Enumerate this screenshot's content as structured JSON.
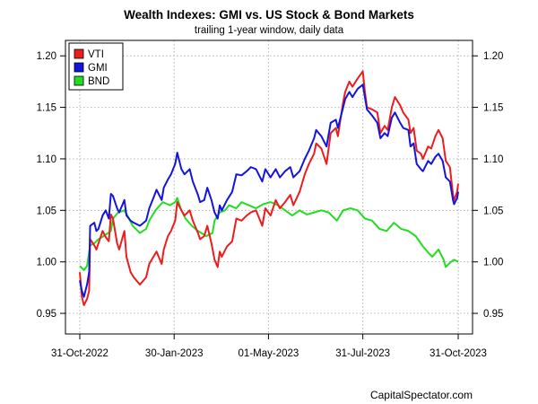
{
  "chart_data": {
    "type": "line",
    "title": "Wealth Indexes: GMI vs. US Stock & Bond Markets",
    "subtitle": "trailing 1-year window, daily data",
    "credit": "CapitalSpectator.com",
    "x_range": [
      "2022-10-31",
      "2023-10-31"
    ],
    "x_ticks": [
      "31-Oct-2022",
      "30-Jan-2023",
      "01-May-2023",
      "31-Jul-2023",
      "31-Oct-2023"
    ],
    "ylim": [
      0.93,
      1.215
    ],
    "y_ticks": [
      "0.95",
      "1.00",
      "1.05",
      "1.10",
      "1.15",
      "1.20"
    ],
    "grid": true,
    "legend_position": "top-left",
    "series": [
      {
        "name": "VTI",
        "color": "#ee1c1c",
        "points": [
          [
            "2022-10-31",
            0.99
          ],
          [
            "2022-11-02",
            0.966
          ],
          [
            "2022-11-04",
            0.958
          ],
          [
            "2022-11-07",
            0.964
          ],
          [
            "2022-11-09",
            0.972
          ],
          [
            "2022-11-10",
            1.022
          ],
          [
            "2022-11-14",
            1.016
          ],
          [
            "2022-11-16",
            1.012
          ],
          [
            "2022-11-18",
            1.018
          ],
          [
            "2022-11-22",
            1.03
          ],
          [
            "2022-11-25",
            1.024
          ],
          [
            "2022-11-28",
            1.02
          ],
          [
            "2022-11-30",
            1.046
          ],
          [
            "2022-12-02",
            1.042
          ],
          [
            "2022-12-06",
            1.018
          ],
          [
            "2022-12-08",
            1.012
          ],
          [
            "2022-12-13",
            1.03
          ],
          [
            "2022-12-15",
            1.005
          ],
          [
            "2022-12-19",
            0.99
          ],
          [
            "2022-12-22",
            0.985
          ],
          [
            "2022-12-28",
            0.978
          ],
          [
            "2023-01-03",
            0.985
          ],
          [
            "2023-01-06",
            0.998
          ],
          [
            "2023-01-10",
            1.005
          ],
          [
            "2023-01-13",
            1.01
          ],
          [
            "2023-01-18",
            0.998
          ],
          [
            "2023-01-20",
            1.012
          ],
          [
            "2023-01-24",
            1.025
          ],
          [
            "2023-01-27",
            1.03
          ],
          [
            "2023-01-31",
            1.04
          ],
          [
            "2023-02-02",
            1.058
          ],
          [
            "2023-02-06",
            1.05
          ],
          [
            "2023-02-09",
            1.045
          ],
          [
            "2023-02-14",
            1.05
          ],
          [
            "2023-02-17",
            1.04
          ],
          [
            "2023-02-22",
            1.028
          ],
          [
            "2023-02-24",
            1.022
          ],
          [
            "2023-02-28",
            1.025
          ],
          [
            "2023-03-03",
            1.035
          ],
          [
            "2023-03-07",
            1.018
          ],
          [
            "2023-03-10",
            1.002
          ],
          [
            "2023-03-13",
            0.995
          ],
          [
            "2023-03-15",
            1.01
          ],
          [
            "2023-03-17",
            1.005
          ],
          [
            "2023-03-22",
            1.015
          ],
          [
            "2023-03-27",
            1.02
          ],
          [
            "2023-03-31",
            1.042
          ],
          [
            "2023-04-05",
            1.04
          ],
          [
            "2023-04-10",
            1.045
          ],
          [
            "2023-04-14",
            1.048
          ],
          [
            "2023-04-19",
            1.05
          ],
          [
            "2023-04-25",
            1.035
          ],
          [
            "2023-04-28",
            1.052
          ],
          [
            "2023-05-03",
            1.045
          ],
          [
            "2023-05-08",
            1.06
          ],
          [
            "2023-05-12",
            1.052
          ],
          [
            "2023-05-17",
            1.058
          ],
          [
            "2023-05-22",
            1.065
          ],
          [
            "2023-05-25",
            1.055
          ],
          [
            "2023-05-31",
            1.068
          ],
          [
            "2023-06-05",
            1.085
          ],
          [
            "2023-06-09",
            1.095
          ],
          [
            "2023-06-14",
            1.105
          ],
          [
            "2023-06-16",
            1.115
          ],
          [
            "2023-06-21",
            1.11
          ],
          [
            "2023-06-26",
            1.095
          ],
          [
            "2023-06-30",
            1.125
          ],
          [
            "2023-07-05",
            1.13
          ],
          [
            "2023-07-07",
            1.122
          ],
          [
            "2023-07-12",
            1.155
          ],
          [
            "2023-07-14",
            1.165
          ],
          [
            "2023-07-18",
            1.175
          ],
          [
            "2023-07-21",
            1.17
          ],
          [
            "2023-07-26",
            1.178
          ],
          [
            "2023-07-31",
            1.185
          ],
          [
            "2023-08-02",
            1.165
          ],
          [
            "2023-08-04",
            1.15
          ],
          [
            "2023-08-09",
            1.148
          ],
          [
            "2023-08-14",
            1.145
          ],
          [
            "2023-08-17",
            1.125
          ],
          [
            "2023-08-21",
            1.132
          ],
          [
            "2023-08-24",
            1.128
          ],
          [
            "2023-08-28",
            1.15
          ],
          [
            "2023-08-31",
            1.16
          ],
          [
            "2023-09-05",
            1.152
          ],
          [
            "2023-09-08",
            1.145
          ],
          [
            "2023-09-13",
            1.138
          ],
          [
            "2023-09-15",
            1.125
          ],
          [
            "2023-09-18",
            1.13
          ],
          [
            "2023-09-21",
            1.108
          ],
          [
            "2023-09-25",
            1.105
          ],
          [
            "2023-09-27",
            1.1
          ],
          [
            "2023-10-02",
            1.112
          ],
          [
            "2023-10-05",
            1.11
          ],
          [
            "2023-10-09",
            1.122
          ],
          [
            "2023-10-12",
            1.128
          ],
          [
            "2023-10-16",
            1.12
          ],
          [
            "2023-10-19",
            1.098
          ],
          [
            "2023-10-23",
            1.092
          ],
          [
            "2023-10-26",
            1.065
          ],
          [
            "2023-10-27",
            1.06
          ],
          [
            "2023-10-30",
            1.068
          ],
          [
            "2023-10-31",
            1.076
          ]
        ]
      },
      {
        "name": "GMI",
        "color": "#1414dc",
        "points": [
          [
            "2022-10-31",
            0.982
          ],
          [
            "2022-11-02",
            0.972
          ],
          [
            "2022-11-04",
            0.966
          ],
          [
            "2022-11-07",
            0.978
          ],
          [
            "2022-11-09",
            0.99
          ],
          [
            "2022-11-10",
            1.035
          ],
          [
            "2022-11-14",
            1.038
          ],
          [
            "2022-11-16",
            1.03
          ],
          [
            "2022-11-18",
            1.032
          ],
          [
            "2022-11-22",
            1.045
          ],
          [
            "2022-11-25",
            1.05
          ],
          [
            "2022-11-28",
            1.042
          ],
          [
            "2022-11-30",
            1.066
          ],
          [
            "2022-12-02",
            1.064
          ],
          [
            "2022-12-06",
            1.052
          ],
          [
            "2022-12-08",
            1.048
          ],
          [
            "2022-12-13",
            1.06
          ],
          [
            "2022-12-15",
            1.045
          ],
          [
            "2022-12-19",
            1.04
          ],
          [
            "2022-12-22",
            1.038
          ],
          [
            "2022-12-28",
            1.035
          ],
          [
            "2023-01-03",
            1.04
          ],
          [
            "2023-01-06",
            1.052
          ],
          [
            "2023-01-10",
            1.062
          ],
          [
            "2023-01-13",
            1.07
          ],
          [
            "2023-01-18",
            1.06
          ],
          [
            "2023-01-20",
            1.072
          ],
          [
            "2023-01-24",
            1.08
          ],
          [
            "2023-01-27",
            1.085
          ],
          [
            "2023-01-31",
            1.095
          ],
          [
            "2023-02-02",
            1.106
          ],
          [
            "2023-02-06",
            1.09
          ],
          [
            "2023-02-09",
            1.085
          ],
          [
            "2023-02-14",
            1.09
          ],
          [
            "2023-02-17",
            1.078
          ],
          [
            "2023-02-22",
            1.065
          ],
          [
            "2023-02-24",
            1.058
          ],
          [
            "2023-02-28",
            1.06
          ],
          [
            "2023-03-03",
            1.072
          ],
          [
            "2023-03-07",
            1.06
          ],
          [
            "2023-03-10",
            1.048
          ],
          [
            "2023-03-13",
            1.042
          ],
          [
            "2023-03-15",
            1.055
          ],
          [
            "2023-03-17",
            1.05
          ],
          [
            "2023-03-22",
            1.06
          ],
          [
            "2023-03-27",
            1.068
          ],
          [
            "2023-03-31",
            1.085
          ],
          [
            "2023-04-05",
            1.084
          ],
          [
            "2023-04-10",
            1.088
          ],
          [
            "2023-04-14",
            1.092
          ],
          [
            "2023-04-19",
            1.09
          ],
          [
            "2023-04-25",
            1.078
          ],
          [
            "2023-04-28",
            1.09
          ],
          [
            "2023-05-03",
            1.082
          ],
          [
            "2023-05-08",
            1.09
          ],
          [
            "2023-05-12",
            1.082
          ],
          [
            "2023-05-17",
            1.088
          ],
          [
            "2023-05-22",
            1.092
          ],
          [
            "2023-05-25",
            1.082
          ],
          [
            "2023-05-31",
            1.088
          ],
          [
            "2023-06-05",
            1.1
          ],
          [
            "2023-06-09",
            1.108
          ],
          [
            "2023-06-14",
            1.12
          ],
          [
            "2023-06-16",
            1.128
          ],
          [
            "2023-06-21",
            1.122
          ],
          [
            "2023-06-26",
            1.112
          ],
          [
            "2023-06-30",
            1.135
          ],
          [
            "2023-07-05",
            1.138
          ],
          [
            "2023-07-07",
            1.13
          ],
          [
            "2023-07-12",
            1.15
          ],
          [
            "2023-07-14",
            1.158
          ],
          [
            "2023-07-18",
            1.165
          ],
          [
            "2023-07-21",
            1.16
          ],
          [
            "2023-07-26",
            1.168
          ],
          [
            "2023-07-31",
            1.172
          ],
          [
            "2023-08-02",
            1.16
          ],
          [
            "2023-08-04",
            1.148
          ],
          [
            "2023-08-09",
            1.142
          ],
          [
            "2023-08-14",
            1.135
          ],
          [
            "2023-08-17",
            1.12
          ],
          [
            "2023-08-21",
            1.125
          ],
          [
            "2023-08-24",
            1.122
          ],
          [
            "2023-08-28",
            1.14
          ],
          [
            "2023-08-31",
            1.145
          ],
          [
            "2023-09-05",
            1.135
          ],
          [
            "2023-09-08",
            1.13
          ],
          [
            "2023-09-13",
            1.128
          ],
          [
            "2023-09-15",
            1.112
          ],
          [
            "2023-09-18",
            1.115
          ],
          [
            "2023-09-21",
            1.095
          ],
          [
            "2023-09-25",
            1.09
          ],
          [
            "2023-09-27",
            1.088
          ],
          [
            "2023-10-02",
            1.098
          ],
          [
            "2023-10-05",
            1.095
          ],
          [
            "2023-10-09",
            1.102
          ],
          [
            "2023-10-12",
            1.105
          ],
          [
            "2023-10-16",
            1.098
          ],
          [
            "2023-10-19",
            1.082
          ],
          [
            "2023-10-23",
            1.078
          ],
          [
            "2023-10-26",
            1.06
          ],
          [
            "2023-10-27",
            1.056
          ],
          [
            "2023-10-30",
            1.062
          ],
          [
            "2023-10-31",
            1.068
          ]
        ]
      },
      {
        "name": "BND",
        "color": "#22dd22",
        "points": [
          [
            "2022-10-31",
            0.996
          ],
          [
            "2022-11-04",
            0.992
          ],
          [
            "2022-11-07",
            0.996
          ],
          [
            "2022-11-10",
            1.016
          ],
          [
            "2022-11-14",
            1.018
          ],
          [
            "2022-11-18",
            1.022
          ],
          [
            "2022-11-23",
            1.025
          ],
          [
            "2022-11-30",
            1.03
          ],
          [
            "2022-12-02",
            1.042
          ],
          [
            "2022-12-07",
            1.048
          ],
          [
            "2022-12-13",
            1.05
          ],
          [
            "2022-12-16",
            1.045
          ],
          [
            "2022-12-21",
            1.035
          ],
          [
            "2022-12-28",
            1.028
          ],
          [
            "2023-01-03",
            1.032
          ],
          [
            "2023-01-06",
            1.04
          ],
          [
            "2023-01-12",
            1.05
          ],
          [
            "2023-01-19",
            1.058
          ],
          [
            "2023-01-26",
            1.055
          ],
          [
            "2023-01-31",
            1.058
          ],
          [
            "2023-02-02",
            1.062
          ],
          [
            "2023-02-06",
            1.05
          ],
          [
            "2023-02-10",
            1.042
          ],
          [
            "2023-02-16",
            1.035
          ],
          [
            "2023-02-22",
            1.03
          ],
          [
            "2023-03-02",
            1.025
          ],
          [
            "2023-03-08",
            1.028
          ],
          [
            "2023-03-10",
            1.04
          ],
          [
            "2023-03-15",
            1.048
          ],
          [
            "2023-03-20",
            1.05
          ],
          [
            "2023-03-24",
            1.055
          ],
          [
            "2023-03-31",
            1.052
          ],
          [
            "2023-04-05",
            1.058
          ],
          [
            "2023-04-12",
            1.055
          ],
          [
            "2023-04-19",
            1.052
          ],
          [
            "2023-04-26",
            1.056
          ],
          [
            "2023-05-03",
            1.058
          ],
          [
            "2023-05-10",
            1.055
          ],
          [
            "2023-05-17",
            1.05
          ],
          [
            "2023-05-24",
            1.045
          ],
          [
            "2023-05-31",
            1.05
          ],
          [
            "2023-06-07",
            1.046
          ],
          [
            "2023-06-14",
            1.048
          ],
          [
            "2023-06-21",
            1.05
          ],
          [
            "2023-06-28",
            1.048
          ],
          [
            "2023-07-06",
            1.04
          ],
          [
            "2023-07-12",
            1.05
          ],
          [
            "2023-07-19",
            1.052
          ],
          [
            "2023-07-26",
            1.05
          ],
          [
            "2023-08-02",
            1.042
          ],
          [
            "2023-08-09",
            1.04
          ],
          [
            "2023-08-16",
            1.032
          ],
          [
            "2023-08-23",
            1.03
          ],
          [
            "2023-08-30",
            1.038
          ],
          [
            "2023-09-06",
            1.032
          ],
          [
            "2023-09-13",
            1.03
          ],
          [
            "2023-09-20",
            1.025
          ],
          [
            "2023-09-27",
            1.015
          ],
          [
            "2023-10-03",
            1.008
          ],
          [
            "2023-10-06",
            1.005
          ],
          [
            "2023-10-12",
            1.012
          ],
          [
            "2023-10-17",
            1.002
          ],
          [
            "2023-10-19",
            0.995
          ],
          [
            "2023-10-24",
            1.0
          ],
          [
            "2023-10-27",
            1.002
          ],
          [
            "2023-10-31",
            1.0
          ]
        ]
      }
    ]
  }
}
